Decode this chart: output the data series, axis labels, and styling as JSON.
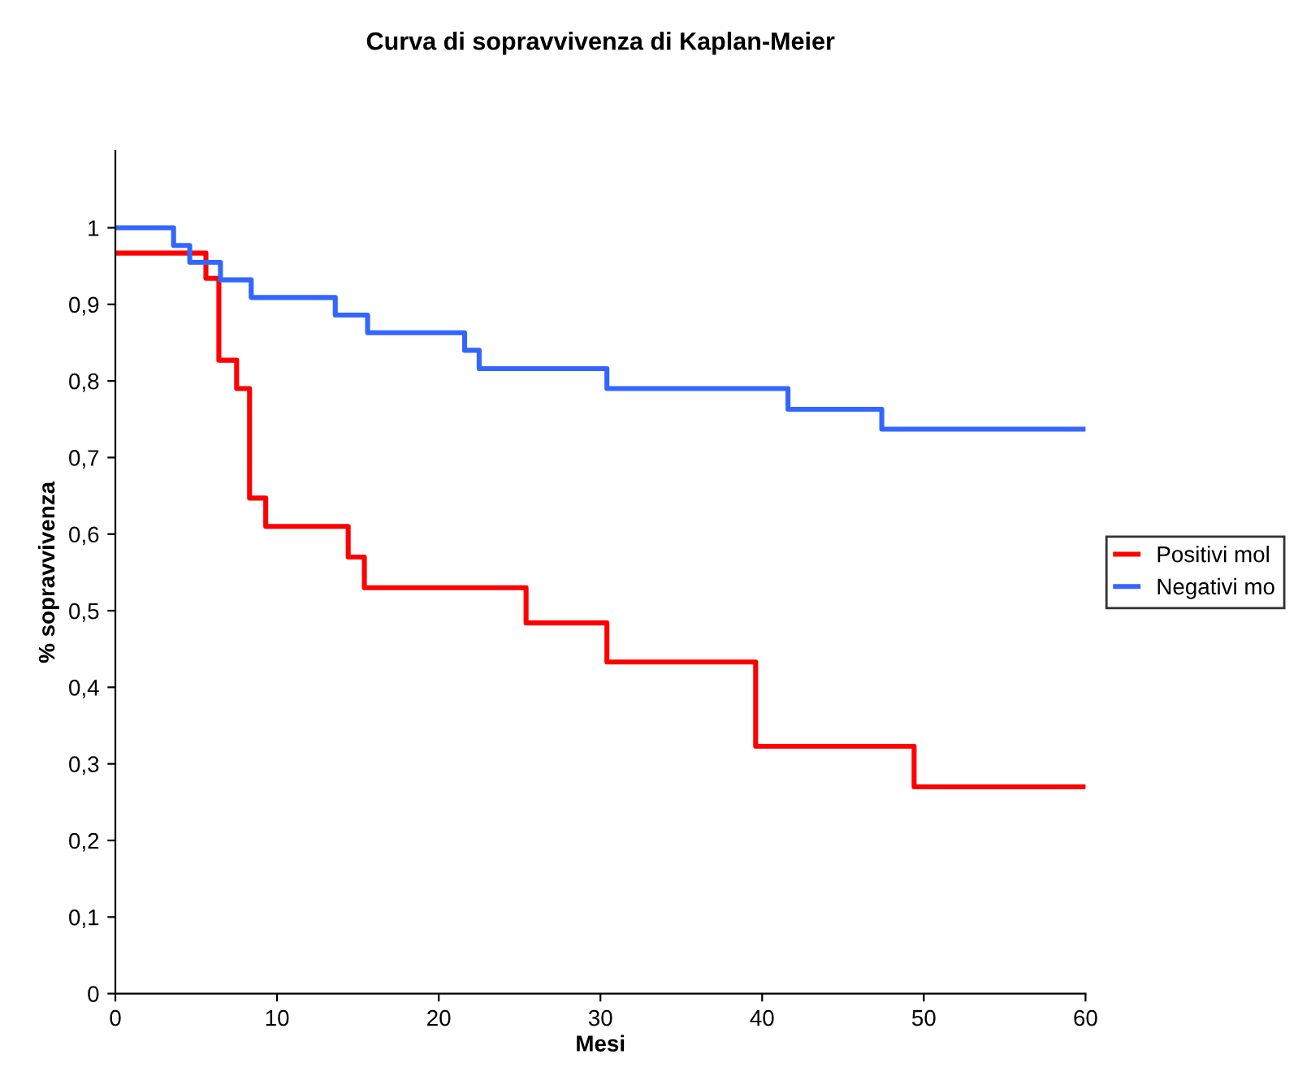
{
  "chart_data": {
    "type": "step",
    "title": "Curva di sopravvivenza di Kaplan-Meier",
    "xlabel": "Mesi",
    "ylabel": "% sopravvivenza",
    "series": [
      {
        "name": "Positivi mol",
        "color": "#ff0000",
        "x": [
          0,
          5.6,
          6.4,
          7.5,
          8.3,
          9.3,
          14.4,
          15.4,
          25.4,
          30.4,
          39.6,
          49.4,
          60
        ],
        "values": [
          0.967,
          0.934,
          0.827,
          0.79,
          0.647,
          0.61,
          0.57,
          0.53,
          0.484,
          0.433,
          0.323,
          0.27,
          0.27
        ]
      },
      {
        "name": "Negativi mo",
        "color": "#3366ff",
        "x": [
          0,
          3.6,
          4.6,
          6.5,
          8.4,
          13.6,
          15.6,
          21.6,
          22.5,
          30.4,
          41.6,
          47.4,
          60
        ],
        "values": [
          1.0,
          0.977,
          0.955,
          0.932,
          0.909,
          0.886,
          0.863,
          0.84,
          0.816,
          0.79,
          0.763,
          0.737,
          0.737
        ]
      }
    ],
    "xlim": [
      0,
      60
    ],
    "xticks": [
      0,
      10,
      20,
      30,
      40,
      50,
      60
    ],
    "ylim": [
      0,
      1.1
    ],
    "yticks": [
      0,
      {
        "value": 0.1,
        "label": "0,1"
      },
      {
        "value": 0.2,
        "label": "0,2"
      },
      {
        "value": 0.3,
        "label": "0,3"
      },
      {
        "value": 0.4,
        "label": "0,4"
      },
      {
        "value": 0.5,
        "label": "0,5"
      },
      {
        "value": 0.6,
        "label": "0,6"
      },
      {
        "value": 0.7,
        "label": "0,7"
      },
      {
        "value": 0.8,
        "label": "0,8"
      },
      {
        "value": 0.9,
        "label": "0,9"
      },
      1
    ],
    "grid": false,
    "legend": "right"
  }
}
